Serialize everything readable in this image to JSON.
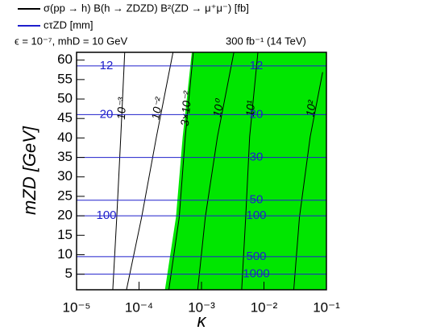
{
  "chart_data": {
    "type": "contour",
    "legend": [
      {
        "name": "σ(pp → h) B(h → ZDZD) B²(ZD → μ⁺μ⁻) [fb]",
        "color": "#000000"
      },
      {
        "name": "cτZD [mm]",
        "color": "#1f1fcc"
      }
    ],
    "annotations": [
      "ϵ = 10⁻⁷, mhD = 10 GeV",
      "300 fb⁻¹ (14 TeV)"
    ],
    "x_label": "κ",
    "y_label": "mZD [GeV]",
    "log_x": true,
    "xlim": [
      1e-05,
      0.1
    ],
    "ylim": [
      1,
      62
    ],
    "xticks": [
      {
        "value": 1e-05,
        "label": "10⁻⁵"
      },
      {
        "value": 0.0001,
        "label": "10⁻⁴"
      },
      {
        "value": 0.001,
        "label": "10⁻³"
      },
      {
        "value": 0.01,
        "label": "10⁻²"
      },
      {
        "value": 0.1,
        "label": "10⁻¹"
      }
    ],
    "yticks": [
      5,
      10,
      15,
      20,
      25,
      30,
      35,
      40,
      45,
      50,
      55,
      60
    ],
    "excluded_region": {
      "color": "#00e600",
      "x": [
        0.00026,
        0.00039,
        0.0005,
        0.0007
      ],
      "y": [
        1,
        19.6,
        40.3,
        62
      ]
    },
    "contours": [
      {
        "label": "10⁻³",
        "x": [
          3.8e-05,
          4.4e-05,
          5.1e-05,
          5.9e-05
        ],
        "y": [
          1,
          19.6,
          40.3,
          62
        ]
      },
      {
        "label": "10⁻²",
        "x": [
          6.3e-05,
          0.00011,
          0.00019,
          0.00035
        ],
        "y": [
          1,
          19.6,
          40.3,
          62
        ]
      },
      {
        "label": "3×10⁻²",
        "x": [
          0.0003,
          0.00044,
          0.00055,
          0.00074
        ],
        "y": [
          1,
          19.6,
          40.3,
          62
        ]
      },
      {
        "label": "10⁰",
        "x": [
          0.00087,
          0.00115,
          0.0018,
          0.0033
        ],
        "y": [
          1,
          19.6,
          40.3,
          62
        ]
      },
      {
        "label": "10¹",
        "x": [
          0.0044,
          0.0051,
          0.0059,
          0.008
        ],
        "y": [
          1,
          19.6,
          40.3,
          62
        ]
      },
      {
        "label": "10²",
        "x": [
          0.03,
          0.037,
          0.055,
          0.087
        ],
        "y": [
          1,
          19.6,
          40.3,
          56.9
        ]
      }
    ],
    "ctau_lines": [
      {
        "label": "12",
        "value": 58.5
      },
      {
        "label": "20",
        "value": 46
      },
      {
        "label": "30",
        "value": 35
      },
      {
        "label": "50",
        "value": 24
      },
      {
        "label": "100",
        "value": 20
      },
      {
        "label": "500",
        "value": 9.5
      },
      {
        "label": "1000",
        "value": 5
      }
    ]
  }
}
